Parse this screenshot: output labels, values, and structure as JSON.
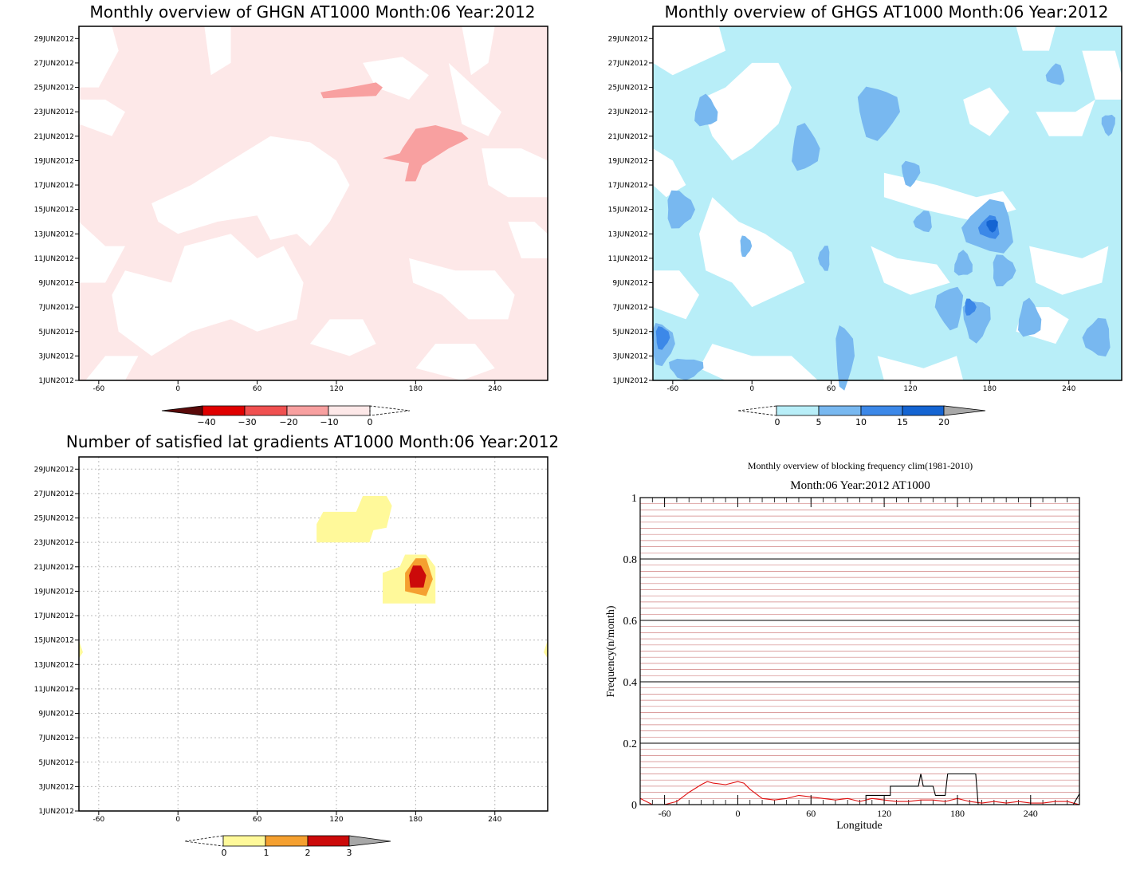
{
  "days_labels": [
    "1JUN2012",
    "3JUN2012",
    "5JUN2012",
    "7JUN2012",
    "9JUN2012",
    "11JUN2012",
    "13JUN2012",
    "15JUN2012",
    "17JUN2012",
    "19JUN2012",
    "21JUN2012",
    "23JUN2012",
    "25JUN2012",
    "27JUN2012",
    "29JUN2012"
  ],
  "lon_ticks": [
    "-60",
    "0",
    "60",
    "120",
    "180",
    "240"
  ],
  "colors": {
    "ghgn": [
      "#5a0a0a",
      "#e00000",
      "#f05050",
      "#f8a0a0",
      "#fde8e8"
    ],
    "ghgs": [
      "#b8eef8",
      "#78b8f0",
      "#3c88e8",
      "#1464d2",
      "#a8a8a8"
    ],
    "sat": [
      "#fff99a",
      "#f5a030",
      "#cc0a0a",
      "#a8a8a8"
    ],
    "line_red": "#e01010",
    "line_black": "#000000"
  },
  "panels": {
    "ghgn": {
      "title": "Monthly overview of GHGN AT1000 Month:06 Year:2012",
      "colorbar_labels": [
        "−40",
        "−30",
        "−20",
        "−10",
        "0"
      ]
    },
    "ghgs": {
      "title": "Monthly overview of GHGS AT1000 Month:06 Year:2012",
      "colorbar_labels": [
        "0",
        "5",
        "10",
        "15",
        "20"
      ]
    },
    "sat": {
      "title": "Number of satisfied lat gradients AT1000 Month:06 Year:2012",
      "colorbar_labels": [
        "0",
        "1",
        "2",
        "3"
      ]
    },
    "freq": {
      "suptitle": "Monthly overview of blocking frequency clim(1981-2010)",
      "title": "Month:06 Year:2012  AT1000"
    }
  },
  "chart_data": [
    {
      "type": "heatmap",
      "title": "Monthly overview of GHGN AT1000 Month:06 Year:2012",
      "x": [
        -60,
        0,
        60,
        120,
        180,
        240
      ],
      "y": [
        "1JUN2012",
        "3JUN2012",
        "5JUN2012",
        "7JUN2012",
        "9JUN2012",
        "11JUN2012",
        "13JUN2012",
        "15JUN2012",
        "17JUN2012",
        "19JUN2012",
        "21JUN2012",
        "23JUN2012",
        "25JUN2012",
        "27JUN2012",
        "29JUN2012"
      ],
      "xlim": [
        -75,
        280
      ],
      "levels": [
        -40,
        -30,
        -20,
        -10,
        0
      ],
      "regions": [
        {
          "level": "-10 to 0",
          "note": "widespread light-pink coverage"
        },
        {
          "level": "-20 to -10",
          "lon": [
            150,
            220
          ],
          "days": [
            17,
            22
          ]
        },
        {
          "level": "-20 to -10",
          "lon": [
            105,
            155
          ],
          "days": [
            24,
            25.5
          ]
        }
      ]
    },
    {
      "type": "heatmap",
      "title": "Monthly overview of GHGS AT1000 Month:06 Year:2012",
      "x": [
        -60,
        0,
        60,
        120,
        180,
        240
      ],
      "y": [
        "1JUN2012",
        "3JUN2012",
        "5JUN2012",
        "7JUN2012",
        "9JUN2012",
        "11JUN2012",
        "13JUN2012",
        "15JUN2012",
        "17JUN2012",
        "19JUN2012",
        "21JUN2012",
        "23JUN2012",
        "25JUN2012",
        "27JUN2012",
        "29JUN2012"
      ],
      "xlim": [
        -75,
        280
      ],
      "levels": [
        0,
        5,
        10,
        15,
        20
      ],
      "regions": [
        {
          "level": "0-5",
          "note": "widespread light-blue coverage"
        },
        {
          "level": "10-15",
          "lon": [
            178,
            190
          ],
          "days": [
            13,
            14.5
          ]
        },
        {
          "level": "10-15",
          "lon": [
            -70,
            -60
          ],
          "days": [
            3.5,
            5.5
          ]
        },
        {
          "level": "5-10",
          "lon": [
            85,
            125
          ],
          "days": [
            20,
            26
          ]
        }
      ]
    },
    {
      "type": "heatmap",
      "title": "Number of satisfied lat gradients AT1000 Month:06 Year:2012",
      "x": [
        -60,
        0,
        60,
        120,
        180,
        240
      ],
      "y": [
        "1JUN2012",
        "3JUN2012",
        "5JUN2012",
        "7JUN2012",
        "9JUN2012",
        "11JUN2012",
        "13JUN2012",
        "15JUN2012",
        "17JUN2012",
        "19JUN2012",
        "21JUN2012",
        "23JUN2012",
        "25JUN2012",
        "27JUN2012",
        "29JUN2012"
      ],
      "xlim": [
        -75,
        280
      ],
      "levels": [
        0,
        1,
        2,
        3
      ],
      "regions": [
        {
          "level": "0-1",
          "lon": [
            105,
            160
          ],
          "days": [
            23,
            26
          ]
        },
        {
          "level": "0-1",
          "lon": [
            155,
            195
          ],
          "days": [
            18,
            22
          ]
        },
        {
          "level": "1-2",
          "lon": [
            170,
            192
          ],
          "days": [
            18.5,
            21.5
          ]
        },
        {
          "level": "2-3",
          "lon": [
            175,
            187
          ],
          "days": [
            19.3,
            21
          ]
        }
      ]
    },
    {
      "type": "line",
      "title": "Month:06 Year:2012  AT1000",
      "subtitle": "Monthly overview of blocking frequency clim(1981-2010)",
      "xlabel": "Longitude",
      "ylabel": "Frequency(n/month)",
      "xlim": [
        -80,
        280
      ],
      "ylim": [
        0,
        1
      ],
      "x_ticks": [
        -60,
        0,
        60,
        120,
        180,
        240
      ],
      "y_ticks": [
        0,
        0.2,
        0.4,
        0.6,
        0.8,
        1
      ],
      "series": [
        {
          "color": "red",
          "x": [
            -80,
            -75,
            -70,
            -60,
            -50,
            -40,
            -30,
            -25,
            -20,
            -10,
            0,
            5,
            10,
            20,
            30,
            40,
            50,
            60,
            70,
            80,
            90,
            100,
            110,
            120,
            130,
            140,
            150,
            160,
            170,
            180,
            190,
            200,
            210,
            220,
            230,
            240,
            250,
            260,
            270,
            280
          ],
          "y": [
            0.02,
            0.01,
            0.0,
            0.0,
            0.01,
            0.04,
            0.065,
            0.075,
            0.07,
            0.065,
            0.075,
            0.07,
            0.05,
            0.02,
            0.015,
            0.02,
            0.03,
            0.025,
            0.02,
            0.015,
            0.02,
            0.01,
            0.02,
            0.015,
            0.01,
            0.01,
            0.015,
            0.015,
            0.01,
            0.02,
            0.01,
            0.005,
            0.01,
            0.005,
            0.01,
            0.005,
            0.005,
            0.01,
            0.01,
            0.0
          ]
        },
        {
          "color": "black",
          "x": [
            -80,
            105,
            105,
            125,
            125,
            130,
            148,
            150,
            152,
            160,
            162,
            170,
            172,
            195,
            197,
            270,
            275,
            280
          ],
          "y": [
            0.0,
            0.0,
            0.03,
            0.03,
            0.06,
            0.06,
            0.06,
            0.1,
            0.06,
            0.06,
            0.03,
            0.03,
            0.1,
            0.1,
            0.0,
            0.0,
            0.0,
            0.035
          ]
        }
      ]
    }
  ]
}
